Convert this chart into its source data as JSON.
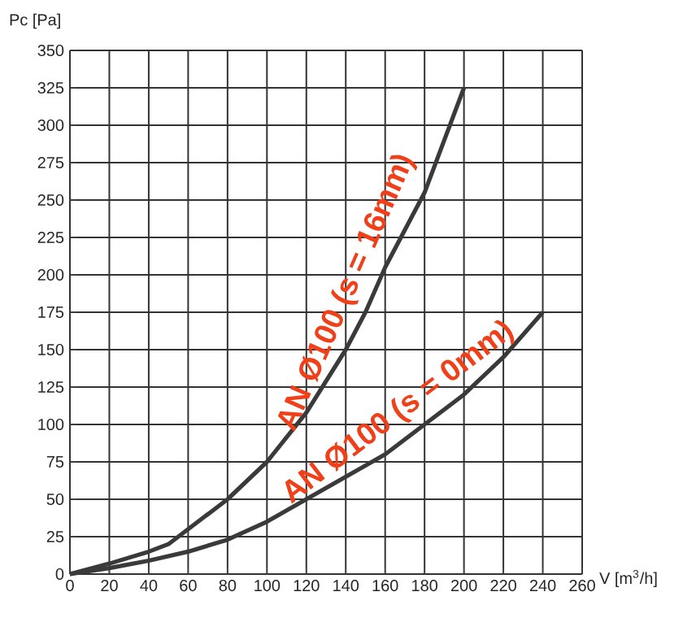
{
  "chart_data": {
    "type": "line",
    "xlabel": "V [m$^{3}$/h]",
    "ylabel": "Pc [Pa]",
    "xlim": [
      0,
      260
    ],
    "ylim": [
      0,
      350
    ],
    "xticks": [
      0,
      20,
      40,
      60,
      80,
      100,
      120,
      140,
      160,
      180,
      200,
      220,
      240,
      260
    ],
    "yticks": [
      0,
      25,
      50,
      75,
      100,
      125,
      150,
      175,
      200,
      225,
      250,
      275,
      300,
      325,
      350
    ],
    "grid": true,
    "marker": "none",
    "line_style": "solid",
    "series": [
      {
        "name": "AN Ø100 (s = 16mm)",
        "color": "#3a3a3a",
        "x": [
          0,
          20,
          40,
          50,
          60,
          80,
          100,
          120,
          140,
          150,
          160,
          180,
          190,
          200
        ],
        "values": [
          0,
          7,
          15,
          20,
          30,
          50,
          75,
          108,
          150,
          175,
          205,
          255,
          290,
          325
        ]
      },
      {
        "name": "AN Ø100 (s = 0mm)",
        "color": "#3a3a3a",
        "x": [
          0,
          20,
          40,
          60,
          80,
          100,
          120,
          140,
          160,
          180,
          200,
          220,
          240
        ],
        "values": [
          0,
          4,
          9,
          15,
          23,
          35,
          50,
          65,
          80,
          100,
          120,
          145,
          175
        ]
      }
    ]
  }
}
